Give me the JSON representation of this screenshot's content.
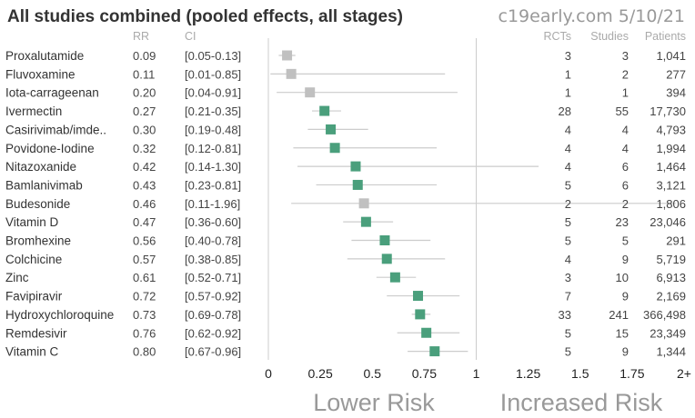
{
  "title": "All studies combined (pooled effects, all stages)",
  "source": "c19early.com 5/10/21",
  "headers": {
    "rr": "RR",
    "ci": "CI",
    "rcts": "RCTs",
    "studies": "Studies",
    "patients": "Patients"
  },
  "axis_labels": {
    "lower": "Lower Risk",
    "increased": "Increased Risk"
  },
  "colors": {
    "significant": "#4a9f7c",
    "not_significant": "#c0c0c0",
    "ci_line": "#cccccc",
    "axis": "#cccccc"
  },
  "chart_data": {
    "type": "forest",
    "x_ticks": [
      "0",
      "0.25",
      "0.5",
      "0.75",
      "1",
      "1.25",
      "1.5",
      "1.75",
      "2+"
    ],
    "xlim": [
      0,
      2
    ],
    "reference_line": 1,
    "rows": [
      {
        "name": "Proxalutamide",
        "rr": 0.09,
        "rr_text": "0.09",
        "ci_low": 0.05,
        "ci_high": 0.13,
        "ci_text": "[0.05-0.13]",
        "rcts": "3",
        "studies": "3",
        "patients": "1,041",
        "significant": false
      },
      {
        "name": "Fluvoxamine",
        "rr": 0.11,
        "rr_text": "0.11",
        "ci_low": 0.01,
        "ci_high": 0.85,
        "ci_text": "[0.01-0.85]",
        "rcts": "1",
        "studies": "2",
        "patients": "277",
        "significant": false
      },
      {
        "name": "Iota-carrageenan",
        "rr": 0.2,
        "rr_text": "0.20",
        "ci_low": 0.04,
        "ci_high": 0.91,
        "ci_text": "[0.04-0.91]",
        "rcts": "1",
        "studies": "1",
        "patients": "394",
        "significant": false
      },
      {
        "name": "Ivermectin",
        "rr": 0.27,
        "rr_text": "0.27",
        "ci_low": 0.21,
        "ci_high": 0.35,
        "ci_text": "[0.21-0.35]",
        "rcts": "28",
        "studies": "55",
        "patients": "17,730",
        "significant": true
      },
      {
        "name": "Casirivimab/imde..",
        "rr": 0.3,
        "rr_text": "0.30",
        "ci_low": 0.19,
        "ci_high": 0.48,
        "ci_text": "[0.19-0.48]",
        "rcts": "4",
        "studies": "4",
        "patients": "4,793",
        "significant": true
      },
      {
        "name": "Povidone-Iodine",
        "rr": 0.32,
        "rr_text": "0.32",
        "ci_low": 0.12,
        "ci_high": 0.81,
        "ci_text": "[0.12-0.81]",
        "rcts": "4",
        "studies": "4",
        "patients": "1,994",
        "significant": true
      },
      {
        "name": "Nitazoxanide",
        "rr": 0.42,
        "rr_text": "0.42",
        "ci_low": 0.14,
        "ci_high": 1.3,
        "ci_text": "[0.14-1.30]",
        "rcts": "4",
        "studies": "6",
        "patients": "1,464",
        "significant": true
      },
      {
        "name": "Bamlanivimab",
        "rr": 0.43,
        "rr_text": "0.43",
        "ci_low": 0.23,
        "ci_high": 0.81,
        "ci_text": "[0.23-0.81]",
        "rcts": "5",
        "studies": "6",
        "patients": "3,121",
        "significant": true
      },
      {
        "name": "Budesonide",
        "rr": 0.46,
        "rr_text": "0.46",
        "ci_low": 0.11,
        "ci_high": 1.96,
        "ci_text": "[0.11-1.96]",
        "rcts": "2",
        "studies": "2",
        "patients": "1,806",
        "significant": false
      },
      {
        "name": "Vitamin D",
        "rr": 0.47,
        "rr_text": "0.47",
        "ci_low": 0.36,
        "ci_high": 0.6,
        "ci_text": "[0.36-0.60]",
        "rcts": "5",
        "studies": "23",
        "patients": "23,046",
        "significant": true
      },
      {
        "name": "Bromhexine",
        "rr": 0.56,
        "rr_text": "0.56",
        "ci_low": 0.4,
        "ci_high": 0.78,
        "ci_text": "[0.40-0.78]",
        "rcts": "5",
        "studies": "5",
        "patients": "291",
        "significant": true
      },
      {
        "name": "Colchicine",
        "rr": 0.57,
        "rr_text": "0.57",
        "ci_low": 0.38,
        "ci_high": 0.85,
        "ci_text": "[0.38-0.85]",
        "rcts": "4",
        "studies": "9",
        "patients": "5,719",
        "significant": true
      },
      {
        "name": "Zinc",
        "rr": 0.61,
        "rr_text": "0.61",
        "ci_low": 0.52,
        "ci_high": 0.71,
        "ci_text": "[0.52-0.71]",
        "rcts": "3",
        "studies": "10",
        "patients": "6,913",
        "significant": true
      },
      {
        "name": "Favipiravir",
        "rr": 0.72,
        "rr_text": "0.72",
        "ci_low": 0.57,
        "ci_high": 0.92,
        "ci_text": "[0.57-0.92]",
        "rcts": "7",
        "studies": "9",
        "patients": "2,169",
        "significant": true
      },
      {
        "name": "Hydroxychloroquine",
        "rr": 0.73,
        "rr_text": "0.73",
        "ci_low": 0.69,
        "ci_high": 0.78,
        "ci_text": "[0.69-0.78]",
        "rcts": "33",
        "studies": "241",
        "patients": "366,498",
        "significant": true
      },
      {
        "name": "Remdesivir",
        "rr": 0.76,
        "rr_text": "0.76",
        "ci_low": 0.62,
        "ci_high": 0.92,
        "ci_text": "[0.62-0.92]",
        "rcts": "5",
        "studies": "15",
        "patients": "23,349",
        "significant": true
      },
      {
        "name": "Vitamin C",
        "rr": 0.8,
        "rr_text": "0.80",
        "ci_low": 0.67,
        "ci_high": 0.96,
        "ci_text": "[0.67-0.96]",
        "rcts": "5",
        "studies": "9",
        "patients": "1,344",
        "significant": true
      }
    ]
  }
}
